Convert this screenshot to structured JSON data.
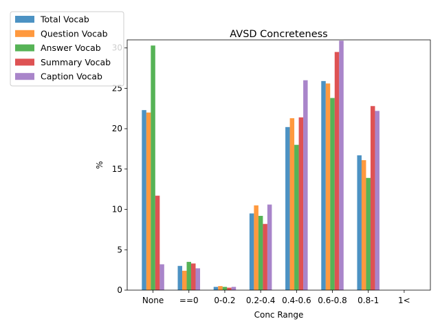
{
  "chart_data": {
    "type": "bar",
    "title": "AVSD Concreteness",
    "xlabel": "Conc Range",
    "ylabel": "%",
    "categories": [
      "None",
      "==0",
      "0-0.2",
      "0.2-0.4",
      "0.4-0.6",
      "0.6-0.8",
      "0.8-1",
      "1<"
    ],
    "ylim": [
      0,
      31
    ],
    "yticks": [
      0,
      5,
      10,
      15,
      20,
      25,
      30
    ],
    "bar_alpha": 0.8,
    "legend_position": "upper-left, outside axes",
    "series": [
      {
        "name": "Total Vocab",
        "color": "#1f77b4",
        "values": [
          22.3,
          3.0,
          0.4,
          9.5,
          20.2,
          25.9,
          16.7,
          0.0
        ]
      },
      {
        "name": "Question Vocab",
        "color": "#ff7f0e",
        "values": [
          22.0,
          2.4,
          0.5,
          10.5,
          21.3,
          25.6,
          16.1,
          0.0
        ]
      },
      {
        "name": "Answer Vocab",
        "color": "#2ca02c",
        "values": [
          30.3,
          3.5,
          0.4,
          9.2,
          18.0,
          23.8,
          13.9,
          0.0
        ]
      },
      {
        "name": "Summary Vocab",
        "color": "#d62728",
        "values": [
          11.7,
          3.3,
          0.3,
          8.2,
          21.4,
          29.5,
          22.8,
          0.0
        ]
      },
      {
        "name": "Caption Vocab",
        "color": "#9467bd",
        "values": [
          3.2,
          2.7,
          0.4,
          10.6,
          26.0,
          30.9,
          22.2,
          0.0
        ]
      }
    ]
  }
}
